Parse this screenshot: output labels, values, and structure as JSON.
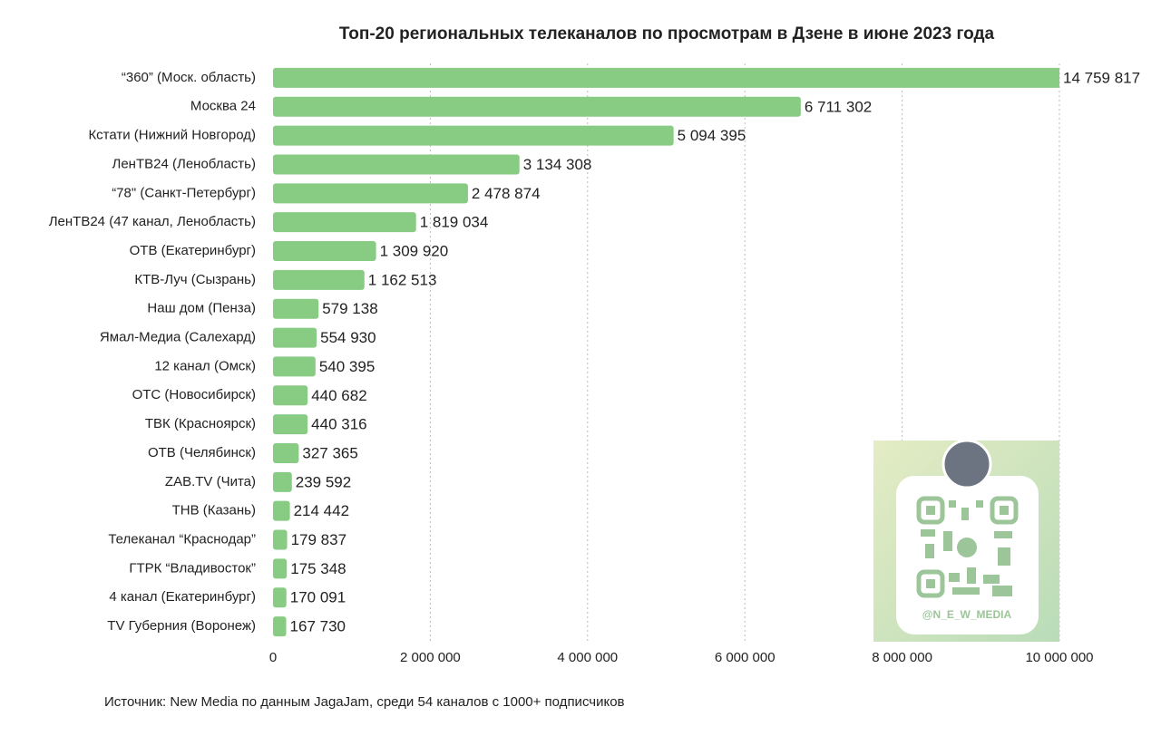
{
  "chart_data": {
    "type": "bar",
    "orientation": "horizontal",
    "title": "Топ-20 региональных телеканалов по просмотрам в Дзене в июне 2023 года",
    "categories": [
      "“360” (Моск. область)",
      "Москва 24",
      "Кстати (Нижний Новгород)",
      "ЛенТВ24 (Ленобласть)",
      "“78\" (Санкт-Петербург)",
      "ЛенТВ24 (47 канал, Ленобласть)",
      "ОТВ (Екатеринбург)",
      "КТВ-Луч (Сызрань)",
      "Наш дом (Пенза)",
      "Ямал-Медиа (Салехард)",
      "12 канал (Омск)",
      "ОТС (Новосибирск)",
      "ТВК (Красноярск)",
      "ОТВ (Челябинск)",
      "ZAB.TV (Чита)",
      "ТНВ (Казань)",
      "Телеканал “Краснодар”",
      "ГТРК “Владивосток”",
      "4 канал (Екатеринбург)",
      "TV Губерния (Воронеж)"
    ],
    "values": [
      14759817,
      6711302,
      5094395,
      3134308,
      2478874,
      1819034,
      1309920,
      1162513,
      579138,
      554930,
      540395,
      440682,
      440316,
      327365,
      239592,
      214442,
      179837,
      175348,
      170091,
      167730
    ],
    "value_labels": [
      "14 759 817",
      "6 711 302",
      "5 094 395",
      "3 134 308",
      "2 478 874",
      "1 819 034",
      "1 309 920",
      "1 162 513",
      "579 138",
      "554 930",
      "540 395",
      "440 682",
      "440 316",
      "327 365",
      "239 592",
      "214 442",
      "179 837",
      "175 348",
      "170 091",
      "167 730"
    ],
    "color": "#88cc84",
    "xlim": [
      0,
      10000000
    ],
    "xticks": [
      0,
      {
        "value": 2000000,
        "label": "2 000 000"
      },
      {
        "value": 4000000,
        "label": "4 000 000"
      },
      {
        "value": 6000000,
        "label": "6 000 000"
      },
      {
        "value": 8000000,
        "label": "8 000 000"
      },
      {
        "value": 10000000,
        "label": "10 000 000"
      }
    ],
    "grid": true,
    "source": "Источник: New Media по данным JagaJam, среди 54 каналов с 1000+ подписчиков",
    "watermark": "@N_E_W_MEDIA"
  }
}
